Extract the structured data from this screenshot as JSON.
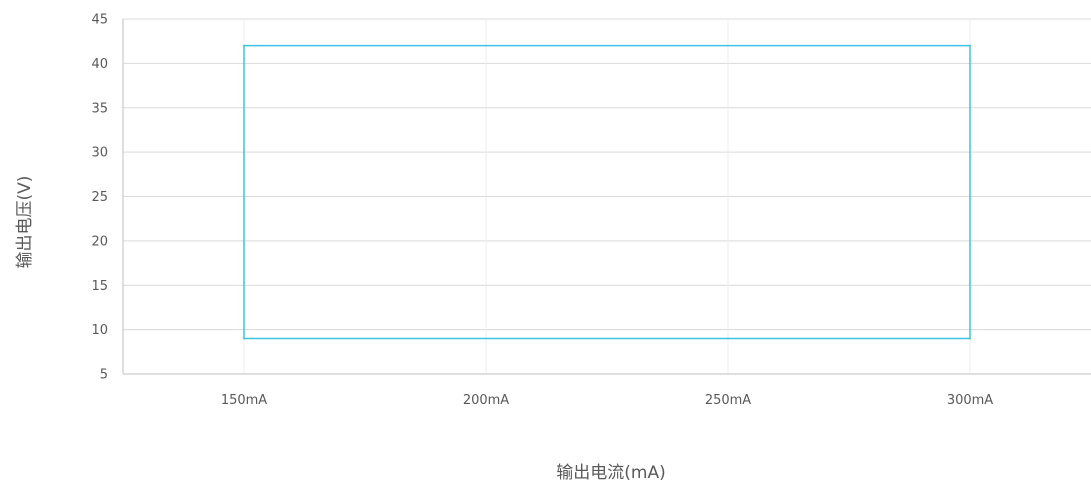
{
  "chart_data": {
    "type": "line",
    "title": "",
    "xlabel": "输出电流(mA)",
    "ylabel": "输出电压(V)",
    "categories": [
      "150mA",
      "200mA",
      "250mA",
      "300mA"
    ],
    "x_values": [
      150,
      200,
      250,
      300
    ],
    "xlim": [
      125,
      325
    ],
    "ylim": [
      5,
      45
    ],
    "yticks": [
      5,
      10,
      15,
      20,
      25,
      30,
      35,
      40,
      45
    ],
    "grid": true,
    "legend": "none",
    "series": [
      {
        "color": "#3ec1e3",
        "points": [
          [
            150,
            9
          ],
          [
            150,
            42
          ],
          [
            300,
            42
          ],
          [
            300,
            9
          ],
          [
            150,
            9
          ]
        ]
      }
    ]
  },
  "colors": {
    "grid": "#d9d9d9",
    "vgrid": "#ececec",
    "axis": "#bfbfbf",
    "text": "#595959"
  }
}
